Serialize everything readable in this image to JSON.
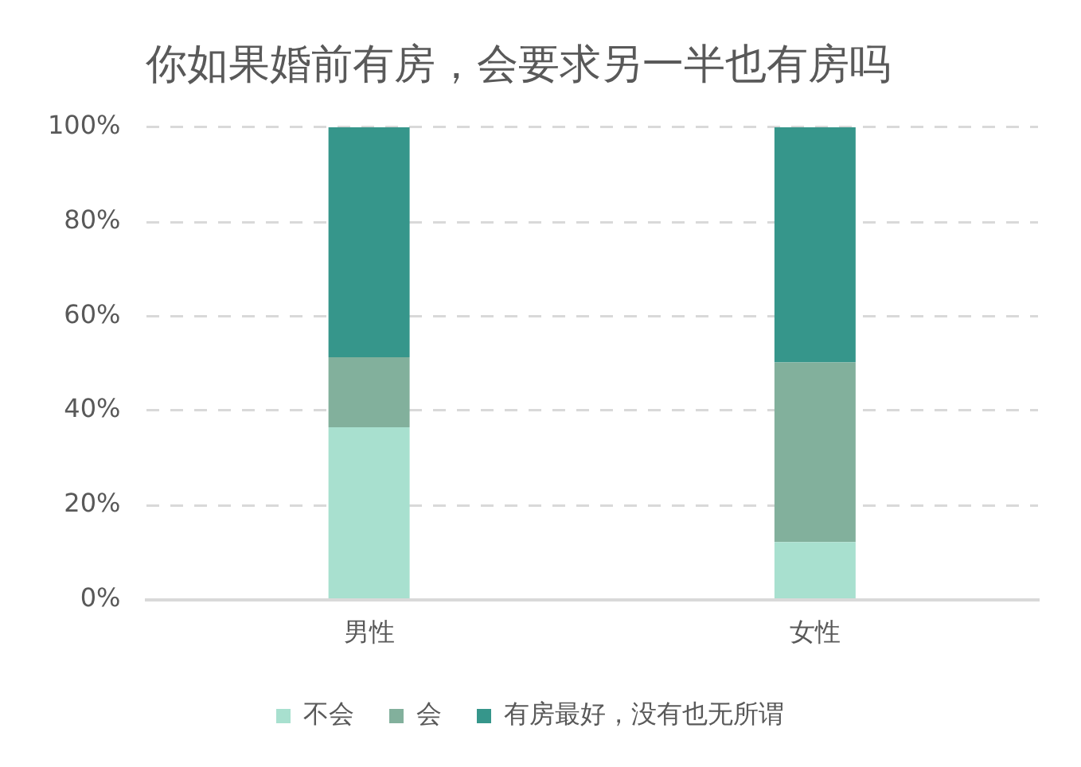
{
  "chart_data": {
    "type": "bar",
    "title": "你如果婚前有房，会要求另一半也有房吗",
    "categories": [
      "男性",
      "女性"
    ],
    "series": [
      {
        "name": "不会",
        "color": "#a8e0cf",
        "values": [
          36.5,
          12.2
        ]
      },
      {
        "name": "会",
        "color": "#82b09c",
        "values": [
          14.8,
          38.0
        ]
      },
      {
        "name": "有房最好，没有也无所谓",
        "color": "#36968b",
        "values": [
          48.7,
          49.8
        ]
      }
    ],
    "stacked": true,
    "ylim": [
      0,
      100
    ],
    "yticks": [
      {
        "value": 0,
        "label": "0%"
      },
      {
        "value": 20,
        "label": "20%"
      },
      {
        "value": 40,
        "label": "40%"
      },
      {
        "value": 60,
        "label": "60%"
      },
      {
        "value": 80,
        "label": "80%"
      },
      {
        "value": 100,
        "label": "100%"
      }
    ],
    "grid": "y",
    "legend": "bottom"
  }
}
